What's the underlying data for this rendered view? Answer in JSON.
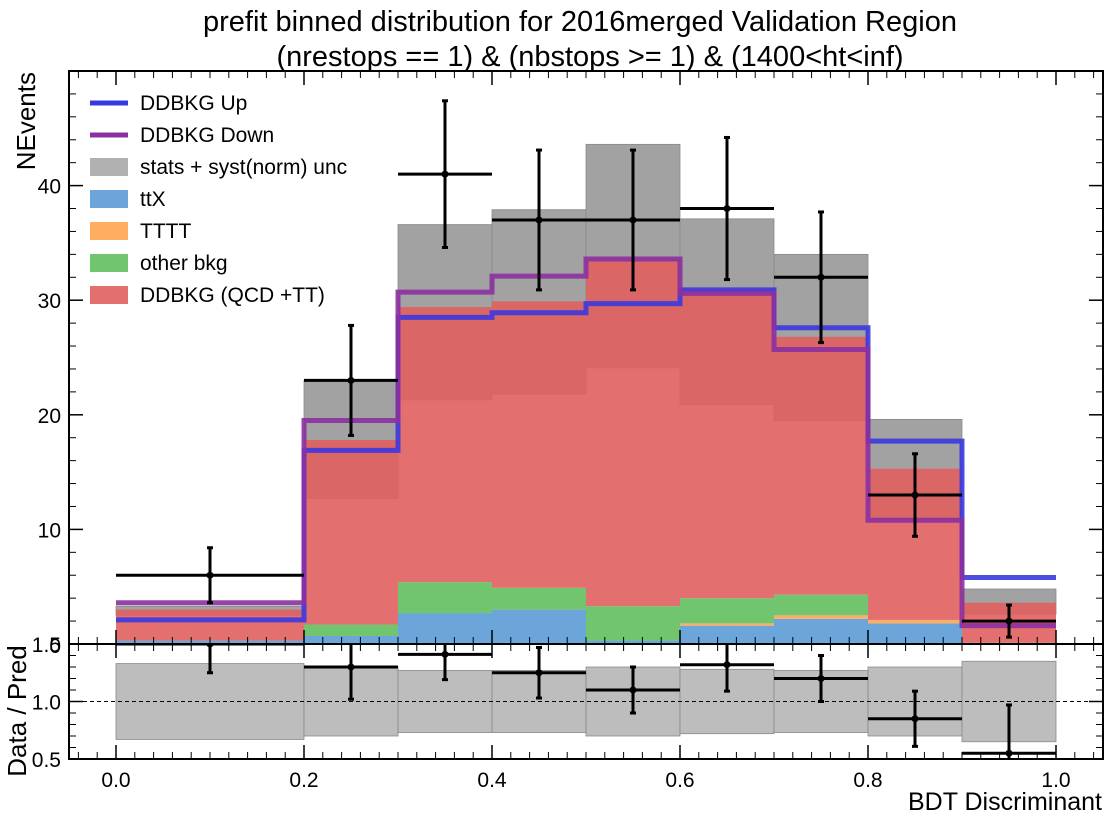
{
  "chart_data": {
    "type": "histogram",
    "title": "prefit binned distribution for 2016merged Validation Region",
    "subtitle": "(nrestops == 1) & (nbstops >= 1) & (1400<ht<inf)",
    "xlabel": "BDT Discriminant",
    "ylabel": "NEvents",
    "ratio_ylabel": "Data / Pred",
    "xlim": [
      -0.05,
      1.05
    ],
    "ylim": [
      0,
      50
    ],
    "ratio_ylim": [
      0.5,
      1.5
    ],
    "bin_edges": [
      0.0,
      0.2,
      0.3,
      0.4,
      0.5,
      0.6,
      0.7,
      0.8,
      0.9,
      1.0
    ],
    "x_ticks": [
      "0.0",
      "0.2",
      "0.4",
      "0.6",
      "0.8",
      "1.0"
    ],
    "y_ticks": [
      "10",
      "20",
      "30",
      "40"
    ],
    "ratio_y_ticks": [
      "0.5",
      "1.0",
      "1.5"
    ],
    "main_axis_zero_label": "0",
    "legend_position": "top-left",
    "stack": [
      {
        "name": "ttX",
        "color": "#5b9bd5",
        "values": [
          0.3,
          0.7,
          2.7,
          3.0,
          0.3,
          1.6,
          2.2,
          1.8,
          0.1
        ]
      },
      {
        "name": "TTTT",
        "color": "#ffa44f",
        "values": [
          0.0,
          0.0,
          0.0,
          0.0,
          0.0,
          0.2,
          0.3,
          0.3,
          0.0
        ]
      },
      {
        "name": "other bkg",
        "color": "#62bf5f",
        "values": [
          0.0,
          1.0,
          2.7,
          1.9,
          3.0,
          2.2,
          1.8,
          0.0,
          0.0
        ]
      },
      {
        "name": "DDBKG (QCD +TT)",
        "color": "#e05f5f",
        "values": [
          2.7,
          16.1,
          24.0,
          25.0,
          30.3,
          27.0,
          22.5,
          13.2,
          3.5
        ]
      }
    ],
    "unc_band": {
      "name": "stats + syst(norm) unc",
      "color": "#a9a9a9",
      "low": [
        2.5,
        12.7,
        21.3,
        21.8,
        24.1,
        20.9,
        19.5,
        10.9,
        2.6
      ],
      "high": [
        3.3,
        23.0,
        36.6,
        37.9,
        43.6,
        37.1,
        34.0,
        19.6,
        4.8
      ]
    },
    "lines": [
      {
        "name": "DDBKG Up",
        "color": "#3838e0",
        "values": [
          2.1,
          16.9,
          28.5,
          28.9,
          29.7,
          30.9,
          27.6,
          17.7,
          5.8
        ]
      },
      {
        "name": "DDBKG Down",
        "color": "#8b30a0",
        "values": [
          3.6,
          19.5,
          30.7,
          32.1,
          33.6,
          30.6,
          25.7,
          10.8,
          1.6
        ]
      }
    ],
    "data_points": {
      "x": [
        0.1,
        0.25,
        0.35,
        0.45,
        0.55,
        0.65,
        0.75,
        0.85,
        0.95
      ],
      "y": [
        6,
        23,
        41,
        37,
        37,
        38,
        32,
        13,
        2
      ],
      "err": [
        2.4,
        4.8,
        6.4,
        6.1,
        6.1,
        6.2,
        5.7,
        3.6,
        1.4
      ]
    },
    "ratio": {
      "values": [
        1.5,
        1.3,
        1.41,
        1.25,
        1.1,
        1.32,
        1.2,
        0.85,
        0.55
      ],
      "err": [
        0.25,
        0.28,
        0.22,
        0.22,
        0.2,
        0.23,
        0.2,
        0.24,
        0.42
      ],
      "band_low": [
        0.67,
        0.7,
        0.73,
        0.73,
        0.7,
        0.72,
        0.73,
        0.7,
        0.65
      ],
      "band_high": [
        1.33,
        1.3,
        1.27,
        1.27,
        1.3,
        1.28,
        1.27,
        1.3,
        1.35
      ],
      "reference": 1.0
    }
  }
}
